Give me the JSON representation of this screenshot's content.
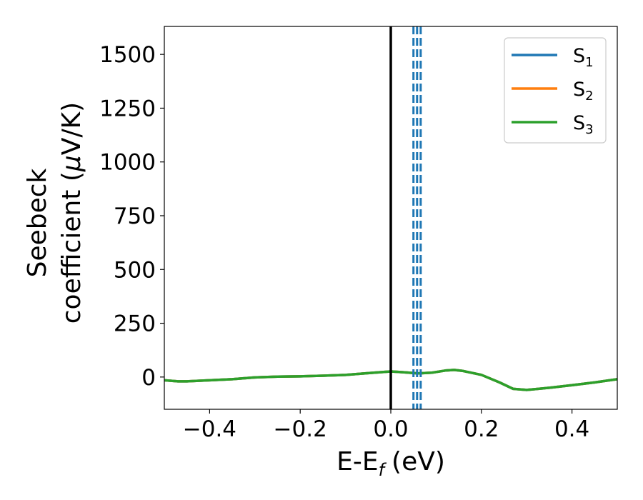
{
  "chart_data": {
    "type": "line",
    "xlabel": "E-E",
    "xlabel_sub": "f",
    "xlabel_unit": "(eV)",
    "ylabel_line1": "Seebeck",
    "ylabel_line2": "coefficient  (",
    "ylabel_mu": "μ",
    "ylabel_unit": "V/K)",
    "xlim": [
      -0.5,
      0.5
    ],
    "ylim": [
      -150,
      1630
    ],
    "xticks": [
      -0.4,
      -0.2,
      0.0,
      0.2,
      0.4
    ],
    "xtick_labels": [
      "−0.4",
      "−0.2",
      "0.0",
      "0.2",
      "0.4"
    ],
    "yticks": [
      0,
      250,
      500,
      750,
      1000,
      1250,
      1500
    ],
    "ytick_labels": [
      "0",
      "250",
      "500",
      "750",
      "1000",
      "1250",
      "1500"
    ],
    "grid": false,
    "legend_position": "top-right",
    "series": [
      {
        "name": "S",
        "sub": "1",
        "color": "#1f77b4",
        "x": [
          -0.5,
          -0.47,
          -0.45,
          -0.4,
          -0.35,
          -0.3,
          -0.25,
          -0.2,
          -0.15,
          -0.1,
          -0.05,
          0.0,
          0.03,
          0.06,
          0.09,
          0.12,
          0.14,
          0.16,
          0.2,
          0.24,
          0.27,
          0.3,
          0.35,
          0.4,
          0.45,
          0.5
        ],
        "y": [
          -15,
          -20,
          -20,
          -15,
          -10,
          -2,
          2,
          3,
          6,
          10,
          18,
          26,
          22,
          17,
          20,
          30,
          33,
          28,
          10,
          -25,
          -55,
          -60,
          -50,
          -38,
          -25,
          -10
        ]
      },
      {
        "name": "S",
        "sub": "2",
        "color": "#ff7f0e",
        "x": [
          -0.5,
          -0.47,
          -0.45,
          -0.4,
          -0.35,
          -0.3,
          -0.25,
          -0.2,
          -0.15,
          -0.1,
          -0.05,
          0.0,
          0.03,
          0.06,
          0.09,
          0.12,
          0.14,
          0.16,
          0.2,
          0.24,
          0.27,
          0.3,
          0.35,
          0.4,
          0.45,
          0.5
        ],
        "y": [
          -15,
          -20,
          -20,
          -15,
          -10,
          -2,
          2,
          3,
          6,
          10,
          18,
          26,
          22,
          17,
          20,
          30,
          33,
          28,
          10,
          -25,
          -55,
          -60,
          -50,
          -38,
          -25,
          -10
        ]
      },
      {
        "name": "S",
        "sub": "3",
        "color": "#2ca02c",
        "x": [
          -0.5,
          -0.47,
          -0.45,
          -0.4,
          -0.35,
          -0.3,
          -0.25,
          -0.2,
          -0.15,
          -0.1,
          -0.05,
          0.0,
          0.03,
          0.06,
          0.09,
          0.12,
          0.14,
          0.16,
          0.2,
          0.24,
          0.27,
          0.3,
          0.35,
          0.4,
          0.45,
          0.5
        ],
        "y": [
          -15,
          -20,
          -20,
          -15,
          -10,
          -2,
          2,
          3,
          6,
          10,
          18,
          26,
          22,
          17,
          20,
          30,
          33,
          28,
          10,
          -25,
          -55,
          -60,
          -50,
          -38,
          -25,
          -10
        ]
      }
    ],
    "vertical_lines": [
      {
        "x": 0.0,
        "color": "#000000",
        "style": "solid"
      },
      {
        "x": 0.05,
        "color": "#1f77b4",
        "style": "dashed"
      },
      {
        "x": 0.058,
        "color": "#1f77b4",
        "style": "dashed"
      },
      {
        "x": 0.066,
        "color": "#1f77b4",
        "style": "dashed"
      }
    ]
  }
}
